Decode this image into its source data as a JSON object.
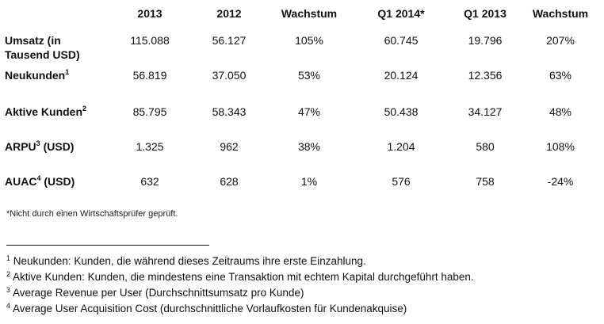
{
  "table": {
    "columns": [
      "",
      "2013",
      "2012",
      "Wachstum",
      "Q1 2014*",
      "Q1 2013",
      "Wachstum"
    ],
    "rows": [
      {
        "label": "Umsatz (in Tausend USD)",
        "sup": "",
        "values": [
          "115.088",
          "56.127",
          "105%",
          "60.745",
          "19.796",
          "207%"
        ]
      },
      {
        "label": "Neukunden",
        "sup": "1",
        "values": [
          "56.819",
          "37.050",
          "53%",
          "20.124",
          "12.356",
          "63%"
        ]
      },
      {
        "label": "Aktive Kunden",
        "sup": "2",
        "values": [
          "85.795",
          "58.343",
          "47%",
          "50.438",
          "34.127",
          "48%"
        ]
      },
      {
        "label": "ARPU",
        "sup": "3",
        "label_suffix": " (USD)",
        "values": [
          "1.325",
          "962",
          "38%",
          "1.204",
          "580",
          "108%"
        ]
      },
      {
        "label": "AUAC",
        "sup": "4",
        "label_suffix": " (USD)",
        "values": [
          "632",
          "628",
          "1%",
          "576",
          "758",
          "-24%"
        ]
      }
    ]
  },
  "note": "*Nicht durch einen Wirtschaftsprüfer geprüft.",
  "footnotes": [
    {
      "num": "1",
      "text": " Neukunden: Kunden, die während dieses Zeitraums ihre erste Einzahlung."
    },
    {
      "num": "2",
      "text": " Aktive Kunden: Kunden, die mindestens eine Transaktion mit echtem Kapital durchgeführt  haben."
    },
    {
      "num": "3",
      "text": " Average Revenue per User (Durchschnittsumsatz  pro Kunde)"
    },
    {
      "num": "4",
      "text": " Average User Acquisition Cost (durchschnittliche  Vorlaufkosten für Kundenakquise)"
    }
  ]
}
